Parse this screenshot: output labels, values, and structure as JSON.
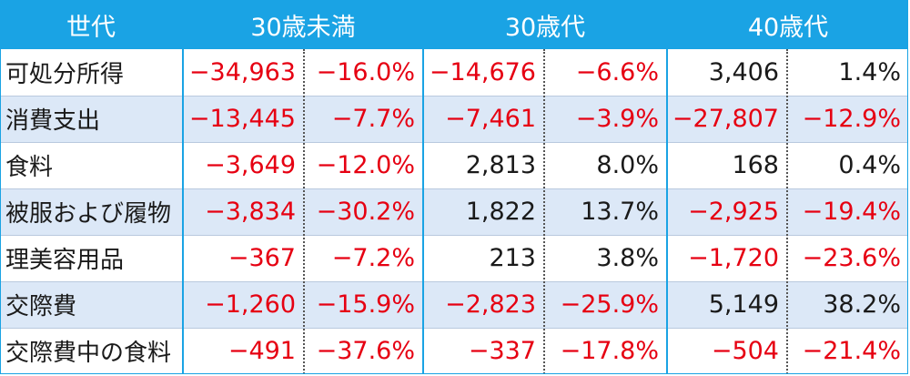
{
  "header": {
    "generation": "世代",
    "under30": "30歳未満",
    "thirties": "30歳代",
    "forties": "40歳代"
  },
  "rows": [
    {
      "label": "可処分所得",
      "u30_amount": "−34,963",
      "u30_pct": "−16.0%",
      "s30_amount": "−14,676",
      "s30_pct": "−6.6%",
      "s40_amount": "3,406",
      "s40_pct": "1.4%",
      "neg": [
        true,
        true,
        true,
        true,
        false,
        false
      ]
    },
    {
      "label": "消費支出",
      "u30_amount": "−13,445",
      "u30_pct": "−7.7%",
      "s30_amount": "−7,461",
      "s30_pct": "−3.9%",
      "s40_amount": "−27,807",
      "s40_pct": "−12.9%",
      "neg": [
        true,
        true,
        true,
        true,
        true,
        true
      ]
    },
    {
      "label": "食料",
      "u30_amount": "−3,649",
      "u30_pct": "−12.0%",
      "s30_amount": "2,813",
      "s30_pct": "8.0%",
      "s40_amount": "168",
      "s40_pct": "0.4%",
      "neg": [
        true,
        true,
        false,
        false,
        false,
        false
      ]
    },
    {
      "label": "被服および履物",
      "u30_amount": "−3,834",
      "u30_pct": "−30.2%",
      "s30_amount": "1,822",
      "s30_pct": "13.7%",
      "s40_amount": "−2,925",
      "s40_pct": "−19.4%",
      "neg": [
        true,
        true,
        false,
        false,
        true,
        true
      ]
    },
    {
      "label": "理美容用品",
      "u30_amount": "−367",
      "u30_pct": "−7.2%",
      "s30_amount": "213",
      "s30_pct": "3.8%",
      "s40_amount": "−1,720",
      "s40_pct": "−23.6%",
      "neg": [
        true,
        true,
        false,
        false,
        true,
        true
      ]
    },
    {
      "label": "交際費",
      "u30_amount": "−1,260",
      "u30_pct": "−15.9%",
      "s30_amount": "−2,823",
      "s30_pct": "−25.9%",
      "s40_amount": "5,149",
      "s40_pct": "38.2%",
      "neg": [
        true,
        true,
        true,
        true,
        false,
        false
      ]
    },
    {
      "label": "交際費中の食料",
      "u30_amount": "−491",
      "u30_pct": "−37.6%",
      "s30_amount": "−337",
      "s30_pct": "−17.8%",
      "s40_amount": "−504",
      "s40_pct": "−21.4%",
      "neg": [
        true,
        true,
        true,
        true,
        true,
        true
      ]
    }
  ],
  "colors": {
    "header_bg": "#1aa3e4",
    "row_shade": "#dce8f7",
    "negative_text": "#e60012",
    "positive_text": "#1a1a1a"
  }
}
